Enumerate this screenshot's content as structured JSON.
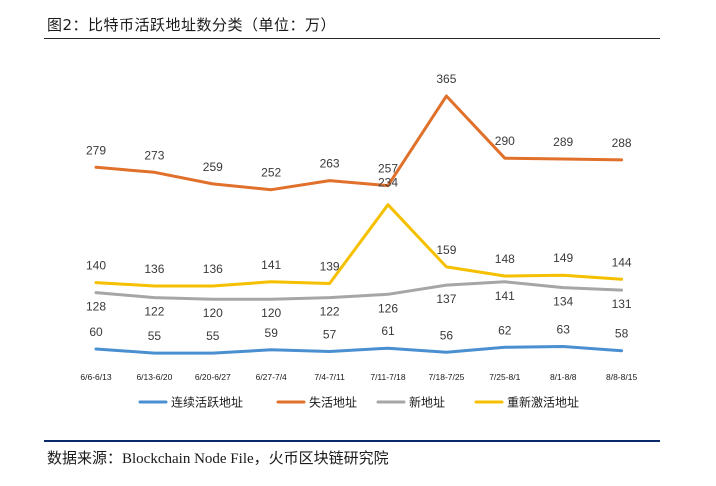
{
  "title": "图2：比特币活跃地址数分类（单位：万）",
  "source": "数据来源：Blockchain Node File，火币区块链研究院",
  "colors": {
    "series": [
      "#4a8fd0",
      "#e0702a",
      "#a6a6a6",
      "#f5c000"
    ],
    "title_rule": "#2a2a2a",
    "footer_rule": "#0b2a6b",
    "data_label": "#3a3a3a",
    "tick_label": "#1a1a1a"
  },
  "chart_data": {
    "type": "line",
    "title": "图2：比特币活跃地址数分类（单位：万）",
    "xlabel": "",
    "ylabel": "",
    "unit": "万",
    "grid": false,
    "legend_position": "bottom",
    "ylim": [
      0,
      380
    ],
    "categories": [
      "6/6-6/13",
      "6/13-6/20",
      "6/20-6/27",
      "6/27-7/4",
      "7/4-7/11",
      "7/11-7/18",
      "7/18-7/25",
      "7/25-8/1",
      "8/1-8/8",
      "8/8-8/15"
    ],
    "series": [
      {
        "name": "连续活跃地址",
        "values": [
          60,
          55,
          55,
          59,
          57,
          61,
          56,
          62,
          63,
          58
        ]
      },
      {
        "name": "失活地址",
        "values": [
          279,
          273,
          259,
          252,
          263,
          257,
          365,
          290,
          289,
          288
        ]
      },
      {
        "name": "新地址",
        "values": [
          128,
          122,
          120,
          120,
          122,
          126,
          137,
          141,
          134,
          131
        ]
      },
      {
        "name": "重新激活地址",
        "values": [
          140,
          136,
          136,
          141,
          139,
          234,
          159,
          148,
          149,
          144
        ]
      }
    ]
  }
}
